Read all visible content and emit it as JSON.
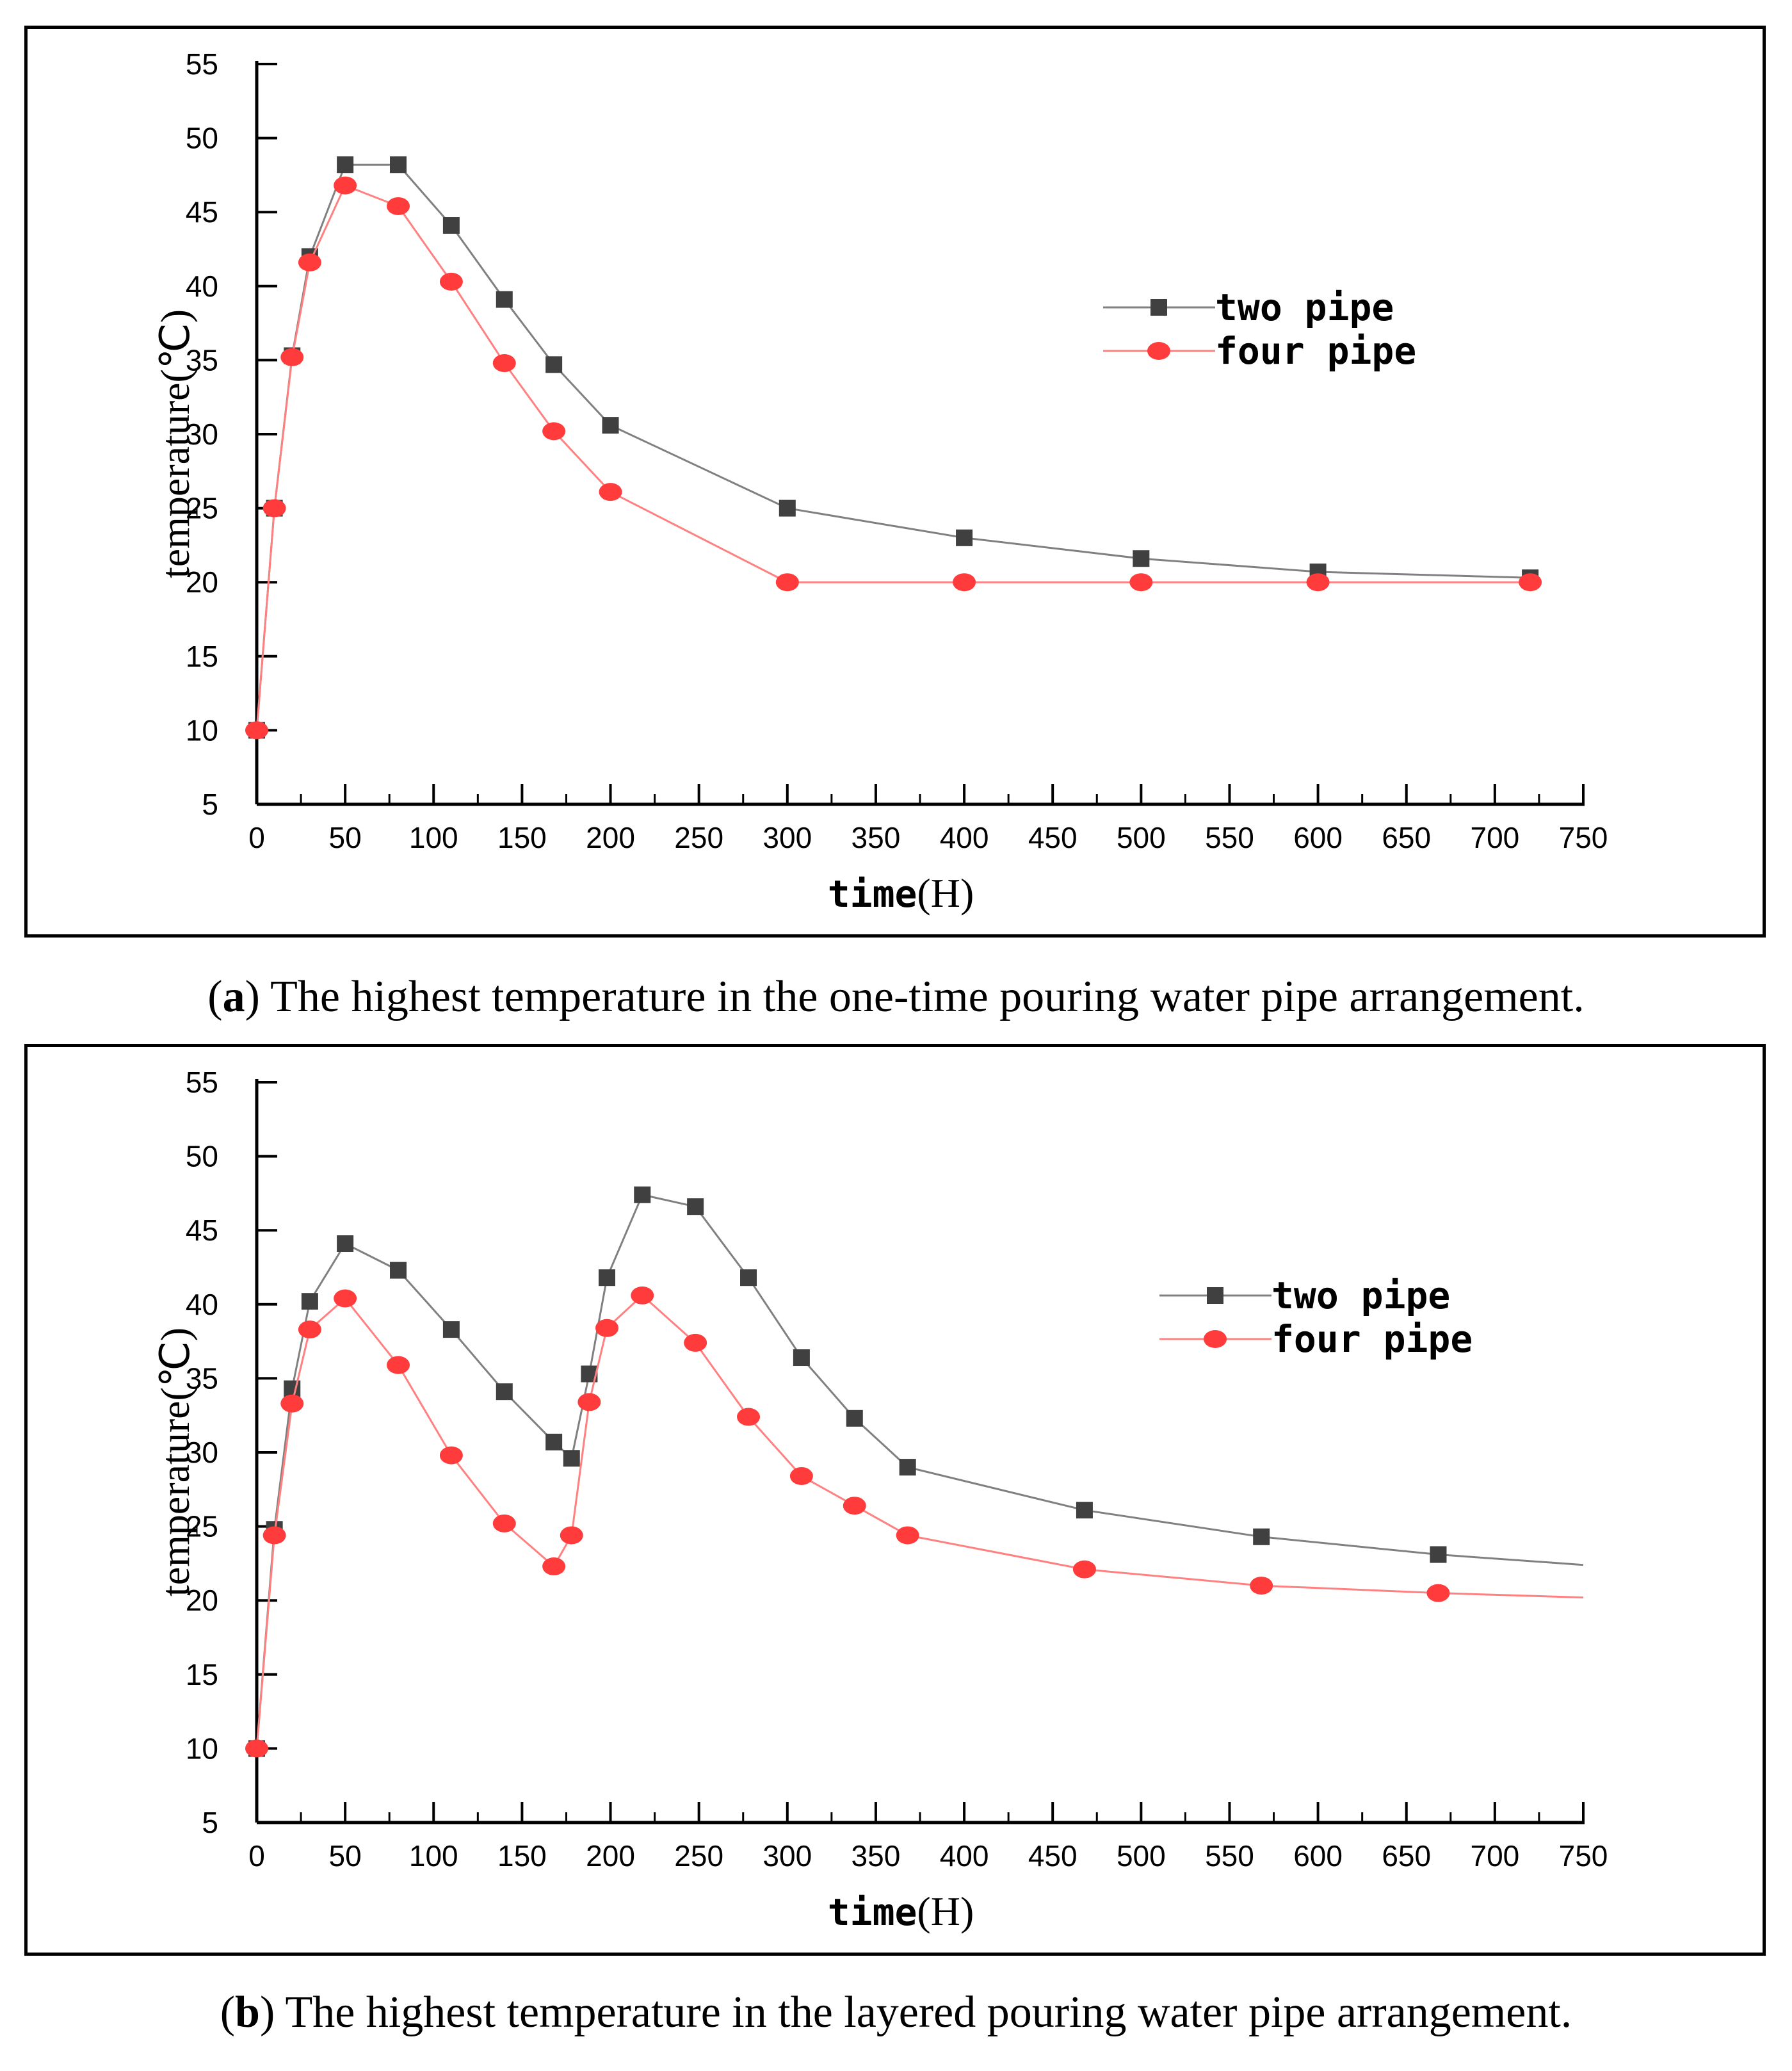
{
  "chart_data": [
    {
      "id": "a",
      "type": "line",
      "caption_label": "a",
      "caption_text": " The highest temperature in the one-time pouring water pipe arrangement.",
      "xlabel_main": "time",
      "xlabel_unit": "(H)",
      "ylabel": "temperature(℃)",
      "xlim": [
        0,
        750
      ],
      "ylim": [
        5,
        55
      ],
      "x_ticks": [
        0,
        50,
        100,
        150,
        200,
        250,
        300,
        350,
        400,
        450,
        500,
        550,
        600,
        650,
        700,
        750
      ],
      "y_ticks": [
        5,
        10,
        15,
        20,
        25,
        30,
        35,
        40,
        45,
        50,
        55
      ],
      "legend_position": "upper-right",
      "series": [
        {
          "name": "two pipe",
          "color": "#808080",
          "marker_color": "#404040",
          "marker": "square",
          "x": [
            0,
            10,
            20,
            30,
            50,
            80,
            110,
            140,
            168,
            200,
            300,
            400,
            500,
            600,
            720
          ],
          "y": [
            10,
            25,
            35.3,
            42,
            48.2,
            48.2,
            44.1,
            39.1,
            34.7,
            30.6,
            25,
            23,
            21.6,
            20.7,
            20.3
          ],
          "markers": [
            true,
            true,
            true,
            true,
            true,
            true,
            true,
            true,
            true,
            true,
            true,
            true,
            true,
            true,
            true
          ]
        },
        {
          "name": "four pipe",
          "color": "#ff8080",
          "marker_color": "#ff3b3b",
          "marker": "circle",
          "x": [
            0,
            10,
            20,
            30,
            50,
            80,
            110,
            140,
            168,
            200,
            300,
            400,
            500,
            600,
            720
          ],
          "y": [
            10,
            25,
            35.2,
            41.6,
            46.8,
            45.4,
            40.3,
            34.8,
            30.2,
            26.1,
            20,
            20,
            20,
            20,
            20
          ],
          "markers": [
            true,
            true,
            true,
            true,
            true,
            true,
            true,
            true,
            true,
            true,
            true,
            true,
            true,
            true,
            true
          ]
        }
      ]
    },
    {
      "id": "b",
      "type": "line",
      "caption_label": "b",
      "caption_text": " The highest temperature in the layered pouring water pipe arrangement.",
      "xlabel_main": "time",
      "xlabel_unit": "(H)",
      "ylabel": "temperature(℃)",
      "xlim": [
        0,
        750
      ],
      "ylim": [
        5,
        55
      ],
      "x_ticks": [
        0,
        50,
        100,
        150,
        200,
        250,
        300,
        350,
        400,
        450,
        500,
        550,
        600,
        650,
        700,
        750
      ],
      "y_ticks": [
        5,
        10,
        15,
        20,
        25,
        30,
        35,
        40,
        45,
        50,
        55
      ],
      "legend_position": "upper-right",
      "series": [
        {
          "name": "two pipe",
          "color": "#808080",
          "marker_color": "#404040",
          "marker": "square",
          "x": [
            0,
            10,
            20,
            30,
            50,
            80,
            110,
            140,
            168,
            178,
            188,
            198,
            218,
            248,
            278,
            308,
            338,
            368,
            468,
            568,
            668,
            750
          ],
          "y": [
            10,
            24.8,
            34.3,
            40.2,
            44.1,
            42.3,
            38.3,
            34.1,
            30.7,
            29.6,
            35.3,
            41.8,
            47.4,
            46.6,
            41.8,
            36.4,
            32.3,
            29,
            26.1,
            24.3,
            23.1,
            22.4
          ],
          "markers": [
            true,
            true,
            true,
            true,
            true,
            true,
            true,
            true,
            true,
            true,
            true,
            true,
            true,
            true,
            true,
            true,
            true,
            true,
            true,
            true,
            true,
            false
          ]
        },
        {
          "name": "four pipe",
          "color": "#ff8080",
          "marker_color": "#ff3b3b",
          "marker": "circle",
          "x": [
            0,
            10,
            20,
            30,
            50,
            80,
            110,
            140,
            168,
            178,
            188,
            198,
            218,
            248,
            278,
            308,
            338,
            368,
            468,
            568,
            668,
            750
          ],
          "y": [
            10,
            24.4,
            33.3,
            38.3,
            40.4,
            35.9,
            29.8,
            25.2,
            22.3,
            24.4,
            33.4,
            38.4,
            40.6,
            37.4,
            32.4,
            28.4,
            26.4,
            24.4,
            22.1,
            21,
            20.5,
            20.2
          ],
          "markers": [
            true,
            true,
            true,
            true,
            true,
            true,
            true,
            true,
            true,
            true,
            true,
            true,
            true,
            true,
            true,
            true,
            true,
            true,
            true,
            true,
            true,
            false
          ]
        }
      ]
    }
  ]
}
